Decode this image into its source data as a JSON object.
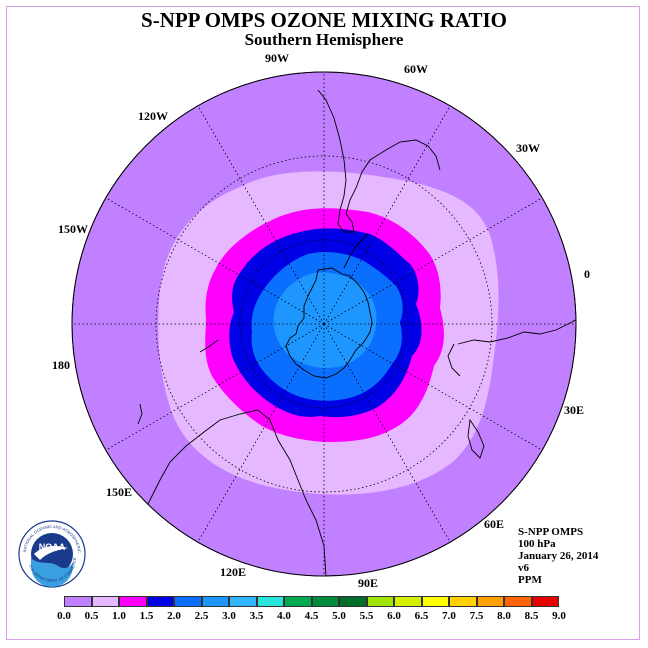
{
  "title": "S-NPP OMPS OZONE MIXING RATIO",
  "subtitle": "Southern Hemisphere",
  "longitude_labels": [
    "0",
    "30W",
    "60W",
    "90W",
    "120W",
    "150W",
    "180",
    "150E",
    "120E",
    "90E",
    "60E",
    "30E"
  ],
  "info": {
    "instrument": "S-NPP OMPS",
    "level": "100 hPa",
    "date": "January 26, 2014",
    "version": "v6",
    "units": "PPM"
  },
  "logo": {
    "text": "NOAA",
    "ring_text": "NATIONAL OCEANIC AND ATMOSPHERIC ADMINISTRATION",
    "ring_text_bottom": "U.S. DEPARTMENT OF COMMERCE"
  },
  "colorbar": {
    "ticks": [
      "0.0",
      "0.5",
      "1.0",
      "1.5",
      "2.0",
      "2.5",
      "3.0",
      "3.5",
      "4.0",
      "4.5",
      "5.0",
      "5.5",
      "6.0",
      "6.5",
      "7.0",
      "7.5",
      "8.0",
      "8.5",
      "9.0"
    ],
    "colors": [
      "#c080ff",
      "#e6b8ff",
      "#ff00ff",
      "#0000e6",
      "#0a6eff",
      "#1e96ff",
      "#32b4ff",
      "#28e6dc",
      "#00aa50",
      "#008c3c",
      "#006e28",
      "#a0e600",
      "#d2f000",
      "#ffff00",
      "#ffd200",
      "#ffa000",
      "#ff6400",
      "#e60000",
      "#8c5a3c"
    ]
  },
  "colors": {
    "band_0_5": "#c080ff",
    "band_0_5_1_0": "#e6b8ff",
    "band_1_0_1_5": "#ff00ff",
    "band_1_5_2_0": "#0000e6",
    "band_2_0_2_5": "#0a6eff",
    "band_2_5_3_0": "#1e96ff"
  }
}
